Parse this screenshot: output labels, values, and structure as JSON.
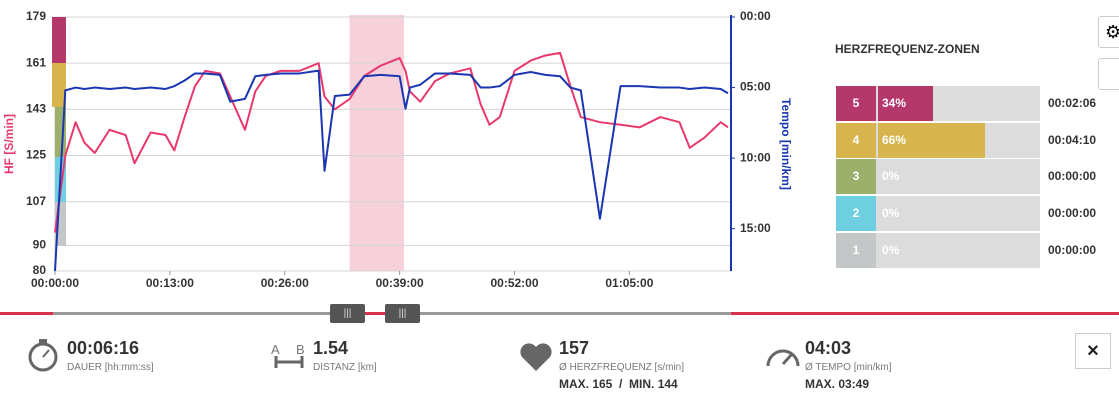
{
  "chart_data": {
    "type": "line",
    "y_label": "HF [S/min]",
    "y2_label": "Tempo [min/km]",
    "x": [
      0,
      70,
      140,
      200,
      270,
      370,
      480,
      540,
      650,
      750,
      810,
      880,
      950,
      1020,
      1120,
      1190,
      1290,
      1360,
      1430,
      1530,
      1660,
      1790,
      1830,
      1900,
      2000,
      2100,
      2210,
      2340,
      2380,
      2410,
      2480,
      2580,
      2680,
      2820,
      2890,
      2950,
      3020,
      3120,
      3230,
      3330,
      3430,
      3500,
      3570,
      3700,
      3840,
      3970,
      4110,
      4240,
      4310,
      4410,
      4520,
      4570
    ],
    "xlim": [
      0,
      4590
    ],
    "xticks": [
      {
        "value": 0,
        "label": "00:00:00"
      },
      {
        "value": 780,
        "label": "00:13:00"
      },
      {
        "value": 1560,
        "label": "00:26:00"
      },
      {
        "value": 2340,
        "label": "00:39:00"
      },
      {
        "value": 3120,
        "label": "00:52:00"
      },
      {
        "value": 3900,
        "label": "01:05:00"
      }
    ],
    "ylim": [
      80,
      179
    ],
    "yticks": [
      80,
      90,
      107,
      125,
      143,
      161,
      179
    ],
    "y2lim": [
      18,
      0
    ],
    "y2ticks": [
      {
        "value": 0,
        "label": "00:00"
      },
      {
        "value": 5,
        "label": "05:00"
      },
      {
        "value": 10,
        "label": "10:00"
      },
      {
        "value": 15,
        "label": "15:00"
      }
    ],
    "grid": true,
    "highlight_x": [
      2000,
      2370
    ],
    "series": [
      {
        "color": "#e8386c",
        "values": [
          95,
          125,
          138,
          130,
          126,
          135,
          133,
          122,
          134,
          133,
          127,
          140,
          152,
          158,
          157,
          148,
          135,
          150,
          156,
          158,
          158,
          161,
          148,
          143,
          147,
          156,
          160,
          163,
          158,
          150,
          146,
          154,
          157,
          159,
          145,
          137,
          140,
          158,
          162,
          164,
          165,
          152,
          140,
          138,
          137,
          136,
          140,
          138,
          128,
          132,
          138,
          136
        ]
      },
      {
        "color": "#1a36b0",
        "axis": "y2",
        "values": [
          18,
          5.2,
          5.0,
          5.1,
          5.0,
          5.1,
          5.0,
          5.1,
          5.0,
          5.1,
          4.9,
          4.5,
          4.0,
          4.0,
          4.1,
          6.0,
          5.8,
          4.2,
          4.1,
          4.0,
          4.0,
          3.8,
          10.9,
          5.6,
          5.5,
          4.2,
          4.1,
          4.2,
          6.5,
          5.0,
          4.8,
          4.0,
          4.0,
          4.1,
          5.0,
          5.0,
          4.9,
          4.1,
          3.9,
          4.1,
          4.2,
          5.0,
          5.2,
          14.3,
          4.9,
          4.9,
          5.0,
          5.0,
          5.1,
          5.0,
          5.1,
          5.4
        ]
      }
    ]
  },
  "zones": {
    "title": "HERZFREQUENZ-ZONEN",
    "items": [
      {
        "zone": "5",
        "color": "#b5386a",
        "percent": 34,
        "percent_label": "34%",
        "time": "00:02:06"
      },
      {
        "zone": "4",
        "color": "#d8b54c",
        "percent": 66,
        "percent_label": "66%",
        "time": "00:04:10"
      },
      {
        "zone": "3",
        "color": "#9cb06c",
        "percent": 0,
        "percent_label": "0%",
        "time": "00:00:00"
      },
      {
        "zone": "2",
        "color": "#6ecfe0",
        "percent": 0,
        "percent_label": "0%",
        "time": "00:00:00"
      },
      {
        "zone": "1",
        "color": "#c3c7c7",
        "percent": 0,
        "percent_label": "0%",
        "time": "00:00:00"
      }
    ]
  },
  "stats": {
    "duration": {
      "value": "00:06:16",
      "label": "DAUER [hh:mm:ss]"
    },
    "distance": {
      "a": "A",
      "b": "B",
      "value": "1.54",
      "label": "DISTANZ [km]"
    },
    "heart_rate": {
      "value": "157",
      "label": "Ø HERZFREQUENZ [s/min]",
      "detail": "MAX. 165  /  MIN. 144"
    },
    "tempo": {
      "value": "04:03",
      "label": "Ø TEMPO [min/km]",
      "detail": "MAX. 03:49"
    }
  }
}
